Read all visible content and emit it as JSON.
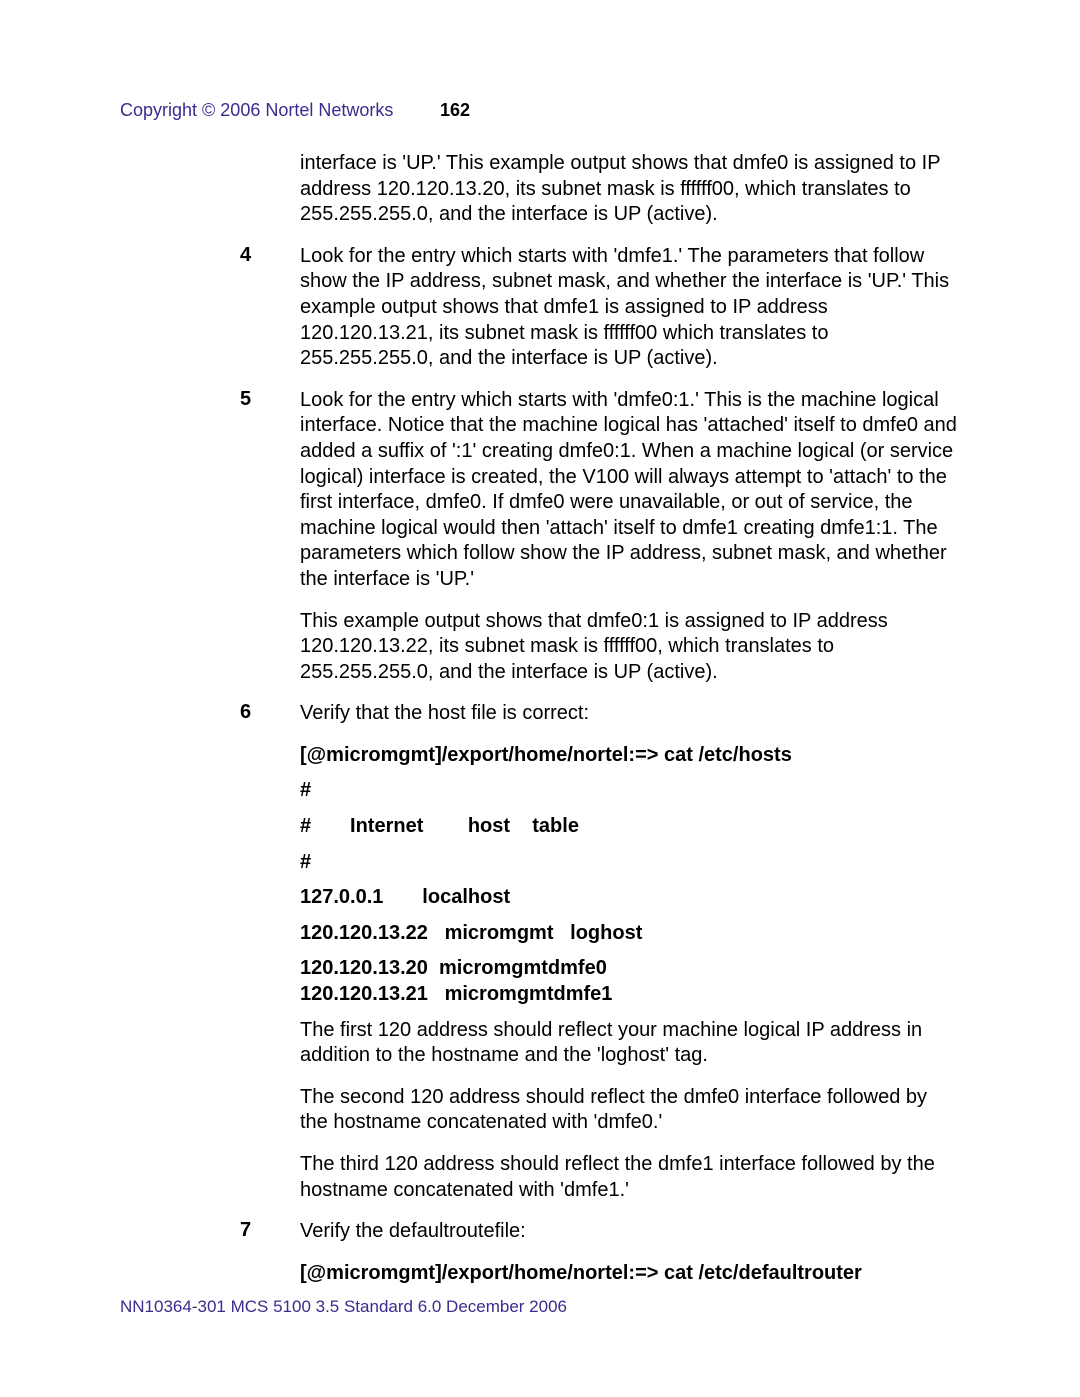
{
  "header": {
    "copyright": "Copyright © 2006 Nortel Networks",
    "page_number": "162"
  },
  "content": {
    "intro_para": "interface is 'UP.' This example output shows that dmfe0 is assigned to IP address 120.120.13.20, its subnet mask is ffffff00, which translates to 255.255.255.0, and the interface is UP (active).",
    "step4": {
      "num": "4",
      "text": "Look for the entry which starts with 'dmfe1.' The parameters that follow show the IP address, subnet mask, and whether the interface is 'UP.' This example output shows that dmfe1 is assigned to IP address 120.120.13.21, its subnet mask is ffffff00 which translates to 255.255.255.0, and the interface is UP (active)."
    },
    "step5": {
      "num": "5",
      "text": "Look for the entry which starts with 'dmfe0:1.' This is the machine logical interface. Notice that the machine logical has 'attached' itself to dmfe0 and added a suffix of ':1' creating dmfe0:1. When a machine logical (or service logical) interface is created, the V100 will always attempt to 'attach' to the first interface, dmfe0. If dmfe0 were unavailable, or out of service, the machine logical would then 'attach' itself to dmfe1 creating dmfe1:1. The parameters which follow show the IP address, subnet mask, and whether the interface is 'UP.'"
    },
    "step5_para2": "This example output shows that dmfe0:1 is assigned to IP address 120.120.13.22, its subnet mask is ffffff00, which translates to 255.255.255.0, and the interface is UP (active).",
    "step6": {
      "num": "6",
      "text": "Verify that the host file is correct:"
    },
    "cmd1": "[@micromgmt]/export/home/nortel:=> cat /etc/hosts",
    "hash1": "#",
    "hash_internet": "#       Internet        host    table",
    "hash2": "#",
    "localhost": "127.0.0.1       localhost",
    "host_22": "120.120.13.22   micromgmt   loghost",
    "host_20_21": "120.120.13.20  micromgmtdmfe0\n120.120.13.21   micromgmtdmfe1",
    "para_first120": "The first 120 address should reflect your machine logical IP address in addition to the hostname and the 'loghost' tag.",
    "para_second120": "The second 120 address should reflect the dmfe0 interface followed by the hostname concatenated with 'dmfe0.'",
    "para_third120": "The third 120 address should reflect the dmfe1 interface followed by the hostname concatenated with 'dmfe1.'",
    "step7": {
      "num": "7",
      "text": "Verify the defaultroutefile:"
    },
    "cmd2": "[@micromgmt]/export/home/nortel:=> cat /etc/defaultrouter"
  },
  "footer": "NN10364-301   MCS 5100 3.5   Standard   6.0   December 2006"
}
